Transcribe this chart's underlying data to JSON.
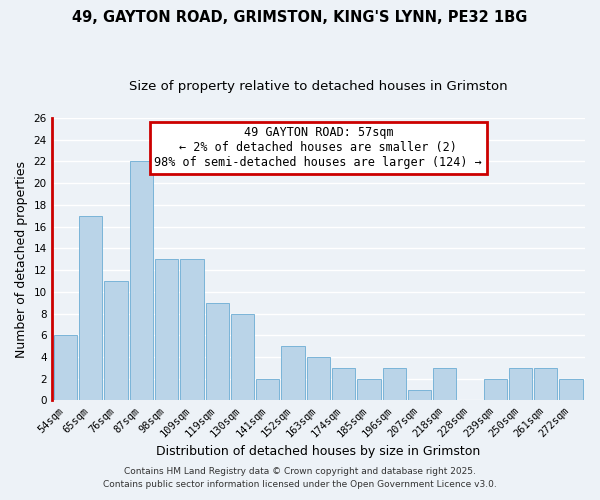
{
  "title": "49, GAYTON ROAD, GRIMSTON, KING'S LYNN, PE32 1BG",
  "subtitle": "Size of property relative to detached houses in Grimston",
  "xlabel": "Distribution of detached houses by size in Grimston",
  "ylabel": "Number of detached properties",
  "bar_labels": [
    "54sqm",
    "65sqm",
    "76sqm",
    "87sqm",
    "98sqm",
    "109sqm",
    "119sqm",
    "130sqm",
    "141sqm",
    "152sqm",
    "163sqm",
    "174sqm",
    "185sqm",
    "196sqm",
    "207sqm",
    "218sqm",
    "228sqm",
    "239sqm",
    "250sqm",
    "261sqm",
    "272sqm"
  ],
  "bar_values": [
    6,
    17,
    11,
    22,
    13,
    13,
    9,
    8,
    2,
    5,
    4,
    3,
    2,
    3,
    1,
    3,
    0,
    2,
    3,
    3,
    2
  ],
  "bar_color": "#bad4e8",
  "bar_edge_color": "#7ab4d8",
  "highlight_bar_index": 0,
  "highlight_edge_color": "#cc0000",
  "ylim": [
    0,
    26
  ],
  "yticks": [
    0,
    2,
    4,
    6,
    8,
    10,
    12,
    14,
    16,
    18,
    20,
    22,
    24,
    26
  ],
  "annotation_title": "49 GAYTON ROAD: 57sqm",
  "annotation_line1": "← 2% of detached houses are smaller (2)",
  "annotation_line2": "98% of semi-detached houses are larger (124) →",
  "annotation_box_color": "#ffffff",
  "annotation_box_edge_color": "#cc0000",
  "footer_line1": "Contains HM Land Registry data © Crown copyright and database right 2025.",
  "footer_line2": "Contains public sector information licensed under the Open Government Licence v3.0.",
  "background_color": "#edf2f7",
  "plot_background_color": "#edf2f7",
  "grid_color": "#ffffff",
  "title_fontsize": 10.5,
  "subtitle_fontsize": 9.5,
  "axis_label_fontsize": 9,
  "tick_fontsize": 7.5,
  "footer_fontsize": 6.5
}
